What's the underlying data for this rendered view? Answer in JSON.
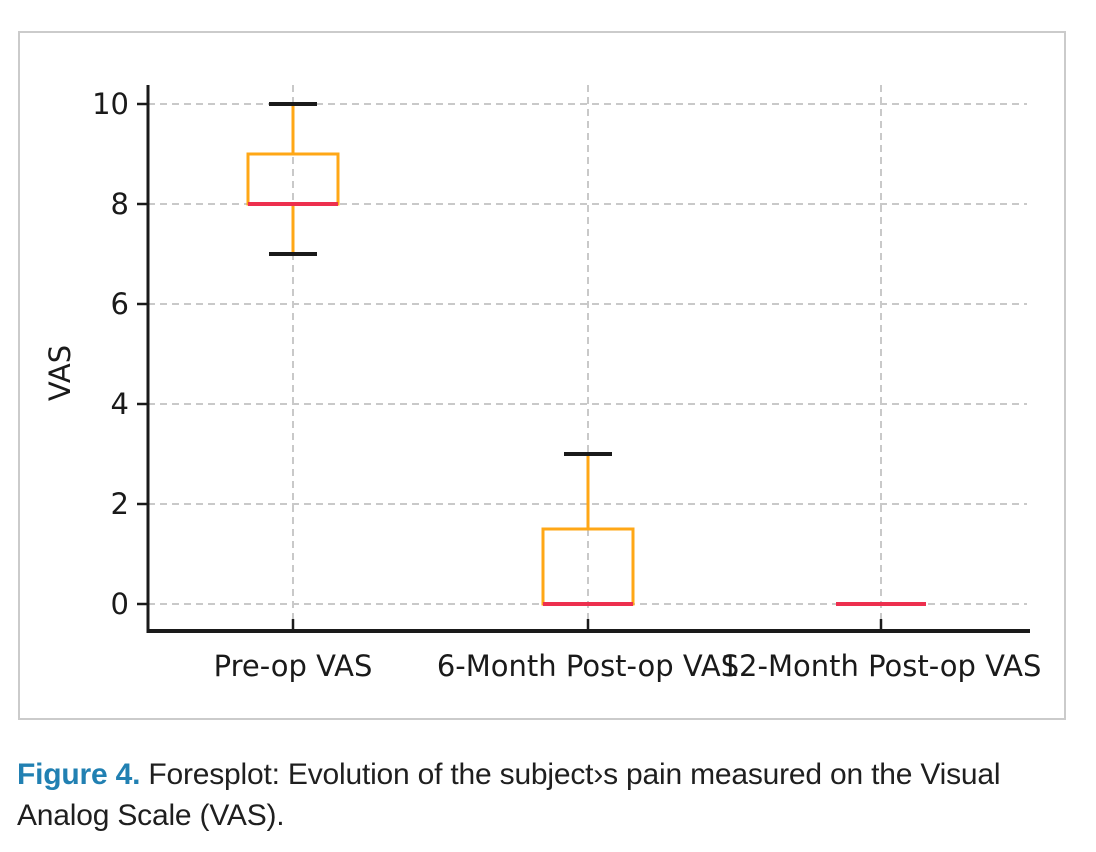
{
  "caption": {
    "label": "Figure 4.",
    "text": "Foresplot: Evolution of the subject›s pain measured on the Visual Analog Scale (VAS)."
  },
  "colors": {
    "caption_accent": "#2180B2",
    "caption_text": "#1F1F1F",
    "box": "#FFA716",
    "median": "#ED2F4E",
    "whisker_cap": "#1A1A1A",
    "axis": "#1A1A1A",
    "grid": "#C9C9C9",
    "tick_text": "#1A1A1A",
    "panel_border": "#CBCBCB"
  },
  "chart_data": {
    "type": "boxplot",
    "title": "",
    "xlabel": "",
    "ylabel": "VAS",
    "yticks": [
      0,
      2,
      4,
      6,
      8,
      10
    ],
    "ylim": [
      -0.52,
      10.4
    ],
    "grid": "dashed gray; horizontal lines at yticks, vertical lines at category centers",
    "legend": "none",
    "categories": [
      "Pre-op VAS",
      "6-Month Post-op VAS",
      "12-Month Post-op VAS"
    ],
    "series": [
      {
        "category": "Pre-op VAS",
        "whisker_low": 7,
        "q1": 8,
        "median": 8,
        "q3": 9,
        "whisker_high": 10
      },
      {
        "category": "6-Month Post-op VAS",
        "whisker_low": 0,
        "q1": 0,
        "median": 0,
        "q3": 1.5,
        "whisker_high": 3
      },
      {
        "category": "12-Month Post-op VAS",
        "whisker_low": 0,
        "q1": 0,
        "median": 0,
        "q3": 0,
        "whisker_high": 0
      }
    ]
  }
}
